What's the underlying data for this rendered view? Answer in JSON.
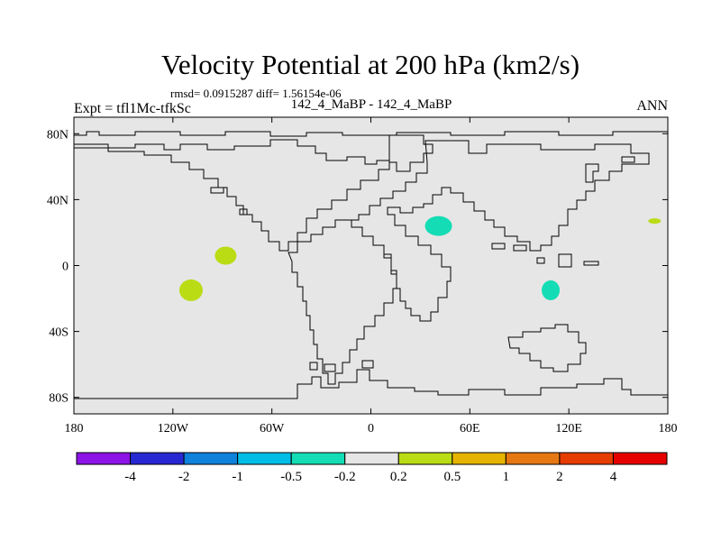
{
  "chart_data": {
    "type": "heatmap",
    "title": "Velocity Potential at 200 hPa (km2/s)",
    "stats_line": "rmsd= 0.0915287 diff= 1.56154e-06",
    "subtitle_left": "Expt = tfl1Mc-tfkSc",
    "subtitle_center": "142_4_MaBP - 142_4_MaBP",
    "subtitle_right": "ANN",
    "xlim": [
      -180,
      180
    ],
    "ylim": [
      -90,
      90
    ],
    "x_ticks": [
      {
        "value": -180,
        "label": "180"
      },
      {
        "value": -120,
        "label": "120W"
      },
      {
        "value": -60,
        "label": "60W"
      },
      {
        "value": 0,
        "label": "0"
      },
      {
        "value": 60,
        "label": "60E"
      },
      {
        "value": 120,
        "label": "120E"
      },
      {
        "value": 180,
        "label": "180"
      }
    ],
    "y_ticks": [
      {
        "value": 80,
        "label": "80N"
      },
      {
        "value": 40,
        "label": "40N"
      },
      {
        "value": 0,
        "label": "0"
      },
      {
        "value": -40,
        "label": "40S"
      },
      {
        "value": -80,
        "label": "80S"
      }
    ],
    "background_class": "-0.2 to 0.2",
    "colorbar": {
      "labels": [
        "-4",
        "-2",
        "-1",
        "-0.5",
        "-0.2",
        "0.2",
        "0.5",
        "1",
        "2",
        "4"
      ],
      "colors": [
        "#8c14e6",
        "#2828d2",
        "#0f82dc",
        "#00bee6",
        "#14dcb4",
        "#e6e6e6",
        "#b9dc14",
        "#e6b400",
        "#e67814",
        "#e63c00",
        "#e60000"
      ]
    },
    "anomalies": [
      {
        "name": "negative-patch-north-africa",
        "lon": 41,
        "lat": 24,
        "class": "-0.5 to -0.2",
        "color": "#14dcb4"
      },
      {
        "name": "negative-patch-indian-ocean",
        "lon": 109,
        "lat": -15,
        "class": "-0.5 to -0.2",
        "color": "#14dcb4"
      },
      {
        "name": "positive-patch-east-pacific",
        "lon": -88,
        "lat": 6,
        "class": "0.2 to 0.5",
        "color": "#b9dc14"
      },
      {
        "name": "positive-patch-south-pacific",
        "lon": -109,
        "lat": -15,
        "class": "0.2 to 0.5",
        "color": "#b9dc14"
      },
      {
        "name": "positive-patch-west-pacific",
        "lon": 172,
        "lat": 27,
        "class": "0.2 to 0.5",
        "color": "#b9dc14"
      }
    ]
  }
}
